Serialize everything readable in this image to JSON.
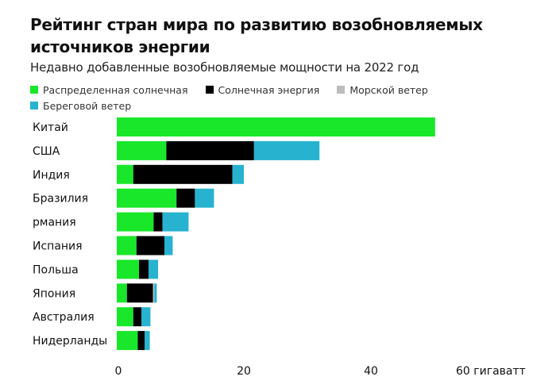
{
  "chart_data": {
    "type": "bar",
    "orientation": "horizontal",
    "stacked": true,
    "title": "Рейтинг стран мира по развитию возобновляемых источников энергии",
    "subtitle": "Недавно добавленные возобновляемые мощности на 2022 год",
    "xlabel": "гигаватт",
    "ylabel": "",
    "xlim": [
      0,
      60
    ],
    "xticks": [
      0,
      20,
      40,
      60
    ],
    "xtick_labels": [
      "0",
      "20",
      "40",
      "60 гигаватт"
    ],
    "grid": false,
    "legend_position": "top-left",
    "categories": [
      "Китай",
      "США",
      "Индия",
      "Бразилия",
      "рмания",
      "Испания",
      "Польша",
      "Япония",
      "Австралия",
      "Нидерланды"
    ],
    "series": [
      {
        "name": "Распределенная солнечная",
        "color": "#18e72a",
        "values": [
          50.1,
          7.8,
          2.6,
          9.4,
          5.8,
          3.1,
          3.5,
          1.6,
          2.6,
          3.3
        ]
      },
      {
        "name": "Солнечная энергия",
        "color": "#000000",
        "values": [
          0,
          13.8,
          15.6,
          2.9,
          1.4,
          4.4,
          1.5,
          4.1,
          1.3,
          1.1
        ]
      },
      {
        "name": "Морской ветер",
        "color": "#bdbdbd",
        "values": [
          0,
          0,
          0,
          0,
          0,
          0,
          0,
          0.2,
          0,
          0
        ]
      },
      {
        "name": "Береговой ветер",
        "color": "#27b2cf",
        "values": [
          0,
          10.3,
          1.8,
          3.0,
          4.1,
          1.3,
          1.5,
          0.4,
          1.4,
          0.8
        ]
      }
    ]
  }
}
